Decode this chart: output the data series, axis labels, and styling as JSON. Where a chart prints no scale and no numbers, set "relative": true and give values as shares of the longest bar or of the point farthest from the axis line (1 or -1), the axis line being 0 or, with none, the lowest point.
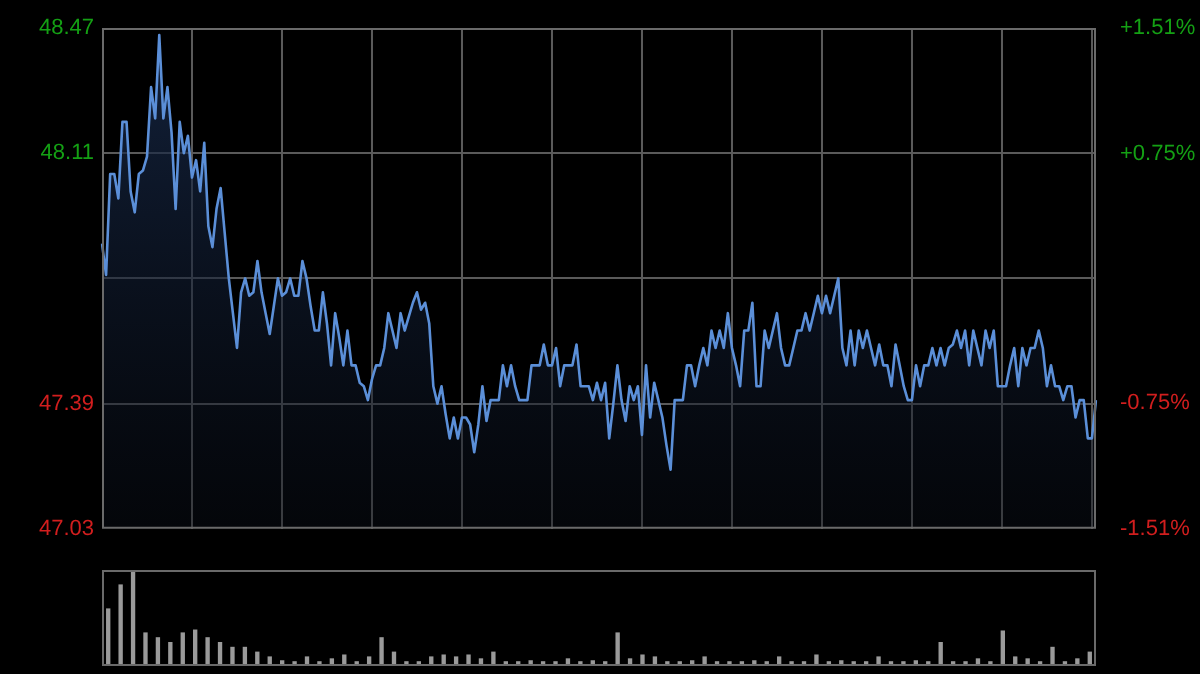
{
  "chart_data": [
    {
      "type": "area",
      "categories": [
        null,
        null,
        null,
        null,
        null,
        null,
        null,
        null,
        null,
        null,
        null,
        null,
        null,
        null,
        null,
        null,
        null,
        null,
        null,
        null,
        null,
        null,
        null,
        null,
        null,
        null,
        null,
        null,
        null,
        null,
        null,
        null,
        null,
        null,
        null,
        null,
        null,
        null,
        null,
        null,
        null,
        null,
        null,
        null,
        null,
        null,
        null,
        null,
        null,
        null,
        null,
        null,
        null,
        null,
        null,
        null,
        null,
        null,
        null,
        null,
        null,
        null,
        null,
        null,
        null,
        null,
        null,
        null,
        null,
        null,
        null,
        null,
        null,
        null,
        null,
        null,
        null,
        null,
        null,
        null,
        null,
        null,
        null,
        null,
        null,
        null,
        null,
        null,
        null,
        null,
        null,
        null,
        null,
        null,
        null,
        null,
        null,
        null,
        null,
        null,
        null,
        null,
        null,
        null,
        null,
        null,
        null,
        null,
        null,
        null,
        null,
        null,
        null,
        null,
        null,
        null,
        null,
        null,
        null,
        null,
        null,
        null,
        null,
        null,
        null,
        null,
        null,
        null,
        null,
        null,
        null,
        null,
        null,
        null,
        null,
        null,
        null,
        null,
        null,
        null,
        null,
        null,
        null,
        null,
        null,
        null,
        null,
        null,
        null,
        null,
        null,
        null,
        null,
        null,
        null,
        null,
        null,
        null,
        null,
        null,
        null,
        null,
        null,
        null,
        null,
        null,
        null,
        null,
        null,
        null,
        null,
        null,
        null,
        null,
        null,
        null,
        null,
        null,
        null,
        null,
        null,
        null,
        null,
        null,
        null,
        null,
        null,
        null,
        null,
        null,
        null,
        null,
        null,
        null,
        null,
        null,
        null,
        null,
        null,
        null,
        null,
        null,
        null,
        null,
        null,
        null,
        null,
        null,
        null,
        null,
        null,
        null,
        null,
        null,
        null,
        null,
        null,
        null,
        null,
        null,
        null,
        null,
        null,
        null,
        null,
        null,
        null,
        null,
        null,
        null,
        null,
        null,
        null,
        null,
        null,
        null,
        null,
        null,
        null,
        null,
        null,
        null,
        null,
        null
      ],
      "series": [
        {
          "color": "#5b8fd8",
          "values": [
            47.85,
            47.76,
            48.05,
            48.05,
            47.98,
            48.2,
            48.2,
            48.0,
            47.94,
            48.05,
            48.06,
            48.1,
            48.3,
            48.21,
            48.45,
            48.21,
            48.3,
            48.17,
            47.95,
            48.2,
            48.11,
            48.16,
            48.04,
            48.09,
            48.0,
            48.14,
            47.9,
            47.84,
            47.95,
            48.01,
            47.88,
            47.75,
            47.65,
            47.55,
            47.71,
            47.75,
            47.7,
            47.71,
            47.8,
            47.71,
            47.65,
            47.59,
            47.67,
            47.75,
            47.7,
            47.71,
            47.75,
            47.7,
            47.7,
            47.8,
            47.75,
            47.67,
            47.6,
            47.6,
            47.71,
            47.62,
            47.5,
            47.65,
            47.58,
            47.5,
            47.6,
            47.5,
            47.5,
            47.45,
            47.44,
            47.4,
            47.46,
            47.5,
            47.5,
            47.55,
            47.65,
            47.6,
            47.55,
            47.65,
            47.6,
            47.64,
            47.68,
            47.71,
            47.66,
            47.68,
            47.62,
            47.44,
            47.39,
            47.44,
            47.36,
            47.29,
            47.35,
            47.29,
            47.35,
            47.35,
            47.33,
            47.25,
            47.33,
            47.44,
            47.34,
            47.4,
            47.4,
            47.4,
            47.5,
            47.44,
            47.5,
            47.44,
            47.4,
            47.4,
            47.4,
            47.5,
            47.5,
            47.5,
            47.56,
            47.5,
            47.5,
            47.55,
            47.44,
            47.5,
            47.5,
            47.5,
            47.56,
            47.44,
            47.44,
            47.44,
            47.4,
            47.45,
            47.4,
            47.45,
            47.29,
            47.39,
            47.5,
            47.4,
            47.34,
            47.44,
            47.4,
            47.44,
            47.3,
            47.5,
            47.35,
            47.45,
            47.4,
            47.35,
            47.27,
            47.2,
            47.4,
            47.4,
            47.4,
            47.5,
            47.5,
            47.44,
            47.5,
            47.55,
            47.5,
            47.6,
            47.55,
            47.6,
            47.55,
            47.65,
            47.55,
            47.5,
            47.44,
            47.6,
            47.6,
            47.68,
            47.44,
            47.44,
            47.6,
            47.55,
            47.6,
            47.65,
            47.55,
            47.5,
            47.5,
            47.55,
            47.6,
            47.6,
            47.65,
            47.6,
            47.65,
            47.7,
            47.65,
            47.7,
            47.65,
            47.7,
            47.75,
            47.55,
            47.5,
            47.6,
            47.5,
            47.6,
            47.55,
            47.6,
            47.55,
            47.5,
            47.56,
            47.5,
            47.5,
            47.44,
            47.56,
            47.5,
            47.44,
            47.4,
            47.4,
            47.5,
            47.44,
            47.5,
            47.5,
            47.55,
            47.5,
            47.55,
            47.5,
            47.55,
            47.56,
            47.6,
            47.55,
            47.6,
            47.5,
            47.6,
            47.55,
            47.5,
            47.6,
            47.55,
            47.6,
            47.44,
            47.44,
            47.44,
            47.5,
            47.55,
            47.44,
            47.55,
            47.5,
            47.55,
            47.55,
            47.6,
            47.55,
            47.44,
            47.5,
            47.44,
            47.44,
            47.4,
            47.44,
            47.44,
            47.35,
            47.4,
            47.4,
            47.29,
            47.29,
            47.4
          ]
        }
      ],
      "ylim": [
        47.03,
        48.47
      ],
      "yticks": [
        47.03,
        47.39,
        {
          "value": 47.75,
          "label": null
        },
        48.11,
        48.47
      ],
      "y2lim": [
        -1.51,
        1.51
      ],
      "y2ticks": [
        {
          "value": -1.51,
          "label": "-1.51%"
        },
        {
          "value": -0.75,
          "label": "-0.75%"
        },
        {
          "value": 0.75,
          "label": "+0.75%"
        },
        {
          "value": 1.51,
          "label": "+1.51%"
        }
      ],
      "grid": true,
      "tick_labels": "y"
    },
    {
      "type": "bar",
      "relative": true,
      "categories": [
        null,
        null,
        null,
        null,
        null,
        null,
        null,
        null,
        null,
        null,
        null,
        null,
        null,
        null,
        null,
        null,
        null,
        null,
        null,
        null,
        null,
        null,
        null,
        null,
        null,
        null,
        null,
        null,
        null,
        null,
        null,
        null,
        null,
        null,
        null,
        null,
        null,
        null,
        null,
        null,
        null,
        null,
        null,
        null,
        null,
        null,
        null,
        null,
        null,
        null,
        null,
        null,
        null,
        null,
        null,
        null,
        null,
        null,
        null,
        null,
        null,
        null,
        null,
        null,
        null,
        null,
        null,
        null,
        null,
        null,
        null,
        null,
        null,
        null,
        null,
        null,
        null,
        null,
        null,
        null
      ],
      "values": [
        0.6,
        0.85,
        1.0,
        0.35,
        0.3,
        0.25,
        0.35,
        0.38,
        0.3,
        0.25,
        0.2,
        0.2,
        0.15,
        0.1,
        0.06,
        0.05,
        0.1,
        0.05,
        0.08,
        0.12,
        0.05,
        0.1,
        0.3,
        0.15,
        0.05,
        0.05,
        0.1,
        0.12,
        0.1,
        0.12,
        0.08,
        0.15,
        0.05,
        0.05,
        0.06,
        0.05,
        0.05,
        0.08,
        0.05,
        0.06,
        0.05,
        0.35,
        0.08,
        0.12,
        0.1,
        0.05,
        0.05,
        0.06,
        0.1,
        0.05,
        0.05,
        0.05,
        0.06,
        0.05,
        0.1,
        0.05,
        0.05,
        0.12,
        0.05,
        0.06,
        0.05,
        0.05,
        0.1,
        0.05,
        0.05,
        0.06,
        0.05,
        0.25,
        0.05,
        0.05,
        0.08,
        0.05,
        0.37,
        0.1,
        0.08,
        0.05,
        0.2,
        0.05,
        0.08,
        0.15
      ],
      "color": "#9a9a9a",
      "tick_labels": false
    }
  ]
}
